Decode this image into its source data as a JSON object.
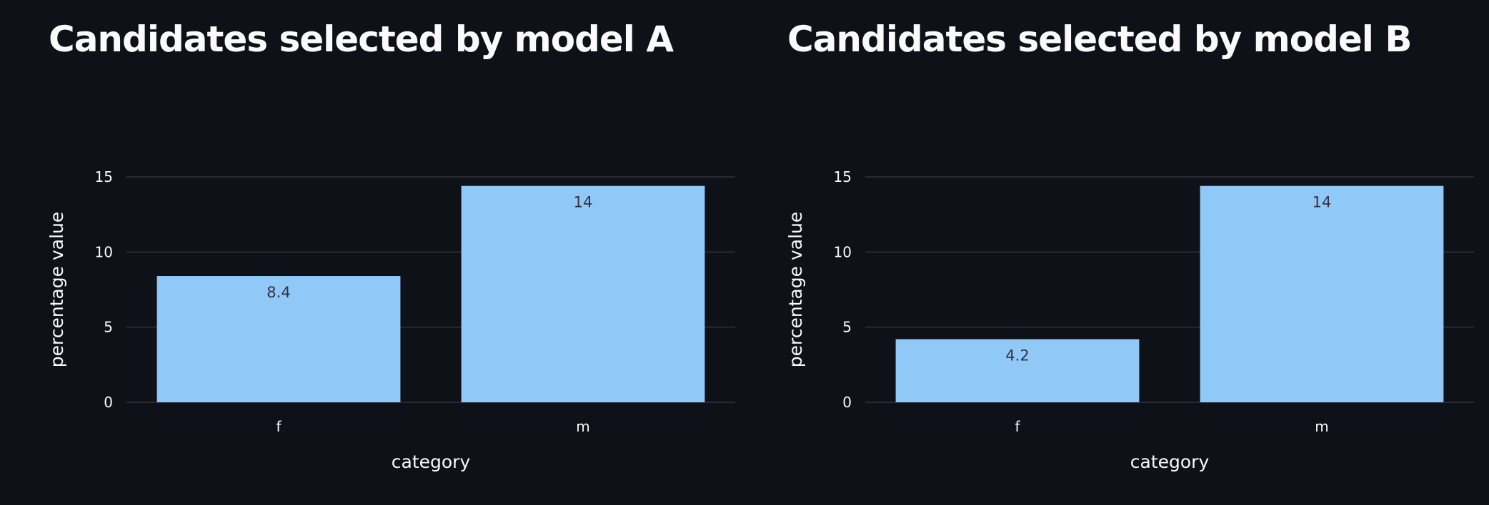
{
  "colors": {
    "background": "#0e1117",
    "bar": "#90c8f8",
    "grid": "#31333f",
    "text": "#fafafa",
    "bar_label": "#31333f"
  },
  "chart_data": [
    {
      "type": "bar",
      "title": "Candidates selected by model A",
      "xlabel": "category",
      "ylabel": "percentage value",
      "categories": [
        "f",
        "m"
      ],
      "values": [
        8.4,
        14.4
      ],
      "data_labels": [
        "8.4",
        "14"
      ],
      "ylim": [
        0,
        15
      ],
      "yticks": [
        0,
        5,
        10,
        15
      ],
      "grid": true
    },
    {
      "type": "bar",
      "title": "Candidates selected by model B",
      "xlabel": "category",
      "ylabel": "percentage value",
      "categories": [
        "f",
        "m"
      ],
      "values": [
        4.2,
        14.4
      ],
      "data_labels": [
        "4.2",
        "14"
      ],
      "ylim": [
        0,
        15
      ],
      "yticks": [
        0,
        5,
        10,
        15
      ],
      "grid": true
    }
  ]
}
